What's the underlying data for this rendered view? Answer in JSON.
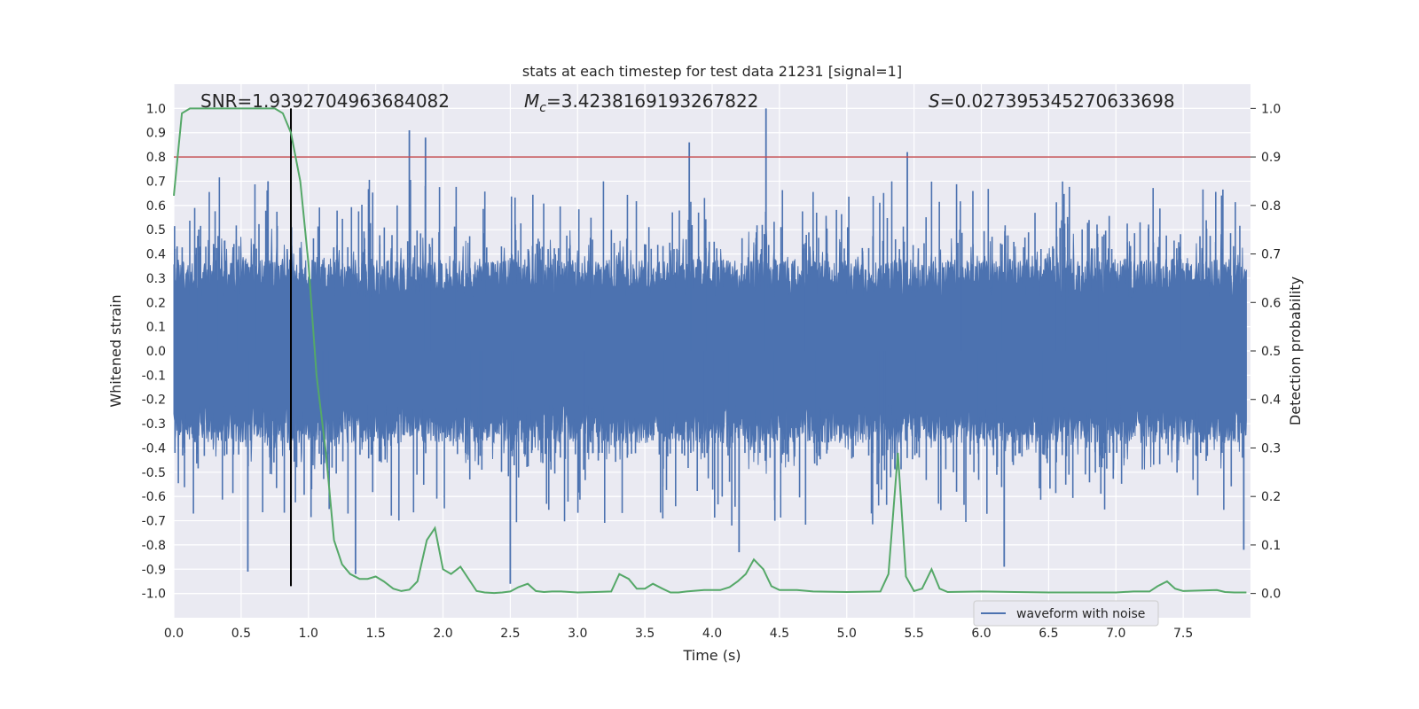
{
  "chart_data": {
    "type": "line",
    "title": "stats at each timestep for test data 21231 [signal=1]",
    "xlabel": "Time (s)",
    "ylabel": "Whitened strain",
    "y2label": "Detection probability",
    "xlim": [
      0.0,
      8.0
    ],
    "ylim": [
      -1.1,
      1.1
    ],
    "y2lim": [
      -0.05,
      1.05
    ],
    "xticks": [
      "0.0",
      "0.5",
      "1.0",
      "1.5",
      "2.0",
      "2.5",
      "3.0",
      "3.5",
      "4.0",
      "4.5",
      "5.0",
      "5.5",
      "6.0",
      "6.5",
      "7.0",
      "7.5"
    ],
    "yticks": [
      "1.0",
      "0.9",
      "0.8",
      "0.7",
      "0.6",
      "0.5",
      "0.4",
      "0.3",
      "0.2",
      "0.1",
      "0.0",
      "-0.1",
      "-0.2",
      "-0.3",
      "-0.4",
      "-0.5",
      "-0.6",
      "-0.7",
      "-0.8",
      "-0.9",
      "-1.0"
    ],
    "y2ticks": [
      "1.0",
      "0.9",
      "0.8",
      "0.7",
      "0.6",
      "0.5",
      "0.4",
      "0.3",
      "0.2",
      "0.1",
      "0.0"
    ],
    "grid": true,
    "legend": {
      "position": "lower-right",
      "entries": [
        "waveform with noise"
      ]
    },
    "annotations": {
      "snr": "SNR=1.9392704963684082",
      "mc_symbol": "M",
      "mc_sub": "c",
      "mc_value": "=3.4238169193267822",
      "s_symbol": "S",
      "s_value": "=0.027395345270633698"
    },
    "threshold_line": {
      "axis": "right",
      "value": 0.9,
      "color": "#c44e52"
    },
    "marker_line": {
      "x": 0.87,
      "color": "#000000",
      "y_from": -0.97,
      "y_to": 1.0
    },
    "series": [
      {
        "name": "waveform with noise",
        "axis": "left",
        "color": "#4c72b0",
        "style": "noise",
        "envelope_upper": 0.55,
        "envelope_lower": -0.55,
        "notable_peaks": [
          {
            "x": 1.75,
            "y": 0.91
          },
          {
            "x": 1.87,
            "y": 0.88
          },
          {
            "x": 3.83,
            "y": 0.86
          },
          {
            "x": 4.4,
            "y": 1.0
          },
          {
            "x": 5.45,
            "y": 0.82
          },
          {
            "x": 0.7,
            "y": 0.7
          }
        ],
        "notable_troughs": [
          {
            "x": 0.55,
            "y": -0.91
          },
          {
            "x": 1.35,
            "y": -0.92
          },
          {
            "x": 2.5,
            "y": -0.96
          },
          {
            "x": 4.2,
            "y": -0.83
          },
          {
            "x": 6.17,
            "y": -0.89
          },
          {
            "x": 7.95,
            "y": -0.82
          }
        ]
      },
      {
        "name": "",
        "axis": "right",
        "color": "#55a868",
        "style": "line",
        "x": [
          0.0,
          0.06,
          0.12,
          0.3,
          0.5,
          0.65,
          0.75,
          0.81,
          0.87,
          0.94,
          1.0,
          1.06,
          1.13,
          1.19,
          1.25,
          1.31,
          1.38,
          1.44,
          1.5,
          1.56,
          1.63,
          1.69,
          1.75,
          1.81,
          1.88,
          1.94,
          2.0,
          2.06,
          2.13,
          2.19,
          2.25,
          2.31,
          2.38,
          2.44,
          2.5,
          2.56,
          2.63,
          2.69,
          2.75,
          2.81,
          2.88,
          3.0,
          3.13,
          3.25,
          3.31,
          3.38,
          3.44,
          3.5,
          3.56,
          3.63,
          3.69,
          3.75,
          3.81,
          3.94,
          4.06,
          4.13,
          4.19,
          4.25,
          4.31,
          4.38,
          4.44,
          4.5,
          4.63,
          4.75,
          5.0,
          5.25,
          5.31,
          5.38,
          5.44,
          5.5,
          5.56,
          5.63,
          5.69,
          5.75,
          6.0,
          6.25,
          6.5,
          7.0,
          7.13,
          7.25,
          7.31,
          7.38,
          7.44,
          7.5,
          7.75,
          7.81,
          7.88,
          7.97
        ],
        "values": [
          0.82,
          0.99,
          1.0,
          1.0,
          1.0,
          1.0,
          1.0,
          0.99,
          0.95,
          0.85,
          0.68,
          0.45,
          0.29,
          0.11,
          0.06,
          0.04,
          0.03,
          0.03,
          0.035,
          0.025,
          0.01,
          0.005,
          0.008,
          0.025,
          0.11,
          0.135,
          0.05,
          0.04,
          0.055,
          0.03,
          0.005,
          0.002,
          0.001,
          0.002,
          0.004,
          0.013,
          0.02,
          0.005,
          0.003,
          0.004,
          0.004,
          0.002,
          0.003,
          0.004,
          0.04,
          0.03,
          0.01,
          0.01,
          0.02,
          0.01,
          0.002,
          0.002,
          0.004,
          0.007,
          0.007,
          0.013,
          0.025,
          0.04,
          0.07,
          0.05,
          0.015,
          0.007,
          0.007,
          0.004,
          0.003,
          0.004,
          0.04,
          0.29,
          0.035,
          0.005,
          0.01,
          0.05,
          0.01,
          0.003,
          0.004,
          0.003,
          0.002,
          0.002,
          0.004,
          0.004,
          0.015,
          0.025,
          0.01,
          0.005,
          0.007,
          0.003,
          0.002,
          0.002
        ]
      }
    ]
  }
}
